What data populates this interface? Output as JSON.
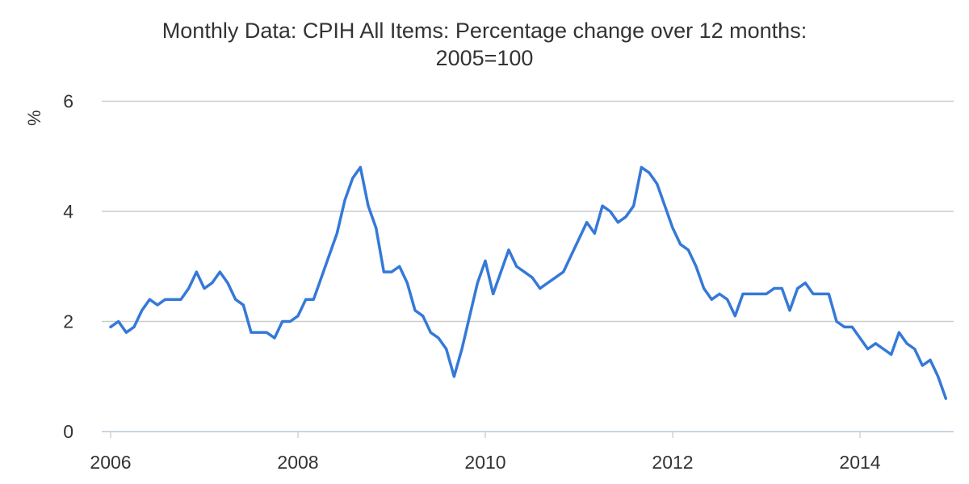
{
  "chart": {
    "title_line1": "Monthly Data: CPIH All Items: Percentage change over 12 months:",
    "title_line2": "2005=100",
    "y_axis": {
      "label": "%",
      "ticks": [
        0,
        2,
        4,
        6
      ],
      "max": 6
    },
    "x_axis": {
      "tick_labels": [
        "2006",
        "2008",
        "2010",
        "2012",
        "2014"
      ]
    },
    "colors": {
      "line": "#3579d8",
      "gridline": "#cccccc",
      "axis": "#c9d4e0",
      "text": "#333333",
      "background": "#ffffff"
    }
  },
  "chart_data": {
    "type": "line",
    "title": "Monthly Data: CPIH All Items: Percentage change over 12 months: 2005=100",
    "xlabel": "",
    "ylabel": "%",
    "frequency": "monthly",
    "x_start": "2006-01",
    "x_end": "2014-12",
    "x_tick_labels": [
      "2006",
      "2008",
      "2010",
      "2012",
      "2014"
    ],
    "ylim": [
      0,
      6
    ],
    "y_ticks": [
      0,
      2,
      4,
      6
    ],
    "grid": "horizontal",
    "legend": "none",
    "series": [
      {
        "name": "CPIH All Items: percentage change over 12 months",
        "values": [
          1.9,
          2.0,
          1.8,
          1.9,
          2.2,
          2.4,
          2.3,
          2.4,
          2.4,
          2.4,
          2.6,
          2.9,
          2.6,
          2.7,
          2.9,
          2.7,
          2.4,
          2.3,
          1.8,
          1.8,
          1.8,
          1.7,
          2.0,
          2.0,
          2.1,
          2.4,
          2.4,
          2.8,
          3.2,
          3.6,
          4.2,
          4.6,
          4.8,
          4.1,
          3.7,
          2.9,
          2.9,
          3.0,
          2.7,
          2.2,
          2.1,
          1.8,
          1.7,
          1.5,
          1.0,
          1.5,
          2.1,
          2.7,
          3.1,
          2.5,
          2.9,
          3.3,
          3.0,
          2.9,
          2.8,
          2.6,
          2.7,
          2.8,
          2.9,
          3.2,
          3.5,
          3.8,
          3.6,
          4.1,
          4.0,
          3.8,
          3.9,
          4.1,
          4.8,
          4.7,
          4.5,
          4.1,
          3.7,
          3.4,
          3.3,
          3.0,
          2.6,
          2.4,
          2.5,
          2.4,
          2.1,
          2.5,
          2.5,
          2.5,
          2.5,
          2.6,
          2.6,
          2.2,
          2.6,
          2.7,
          2.5,
          2.5,
          2.5,
          2.0,
          1.9,
          1.9,
          1.7,
          1.5,
          1.6,
          1.5,
          1.4,
          1.8,
          1.6,
          1.5,
          1.2,
          1.3,
          1.0,
          0.6
        ]
      }
    ]
  }
}
